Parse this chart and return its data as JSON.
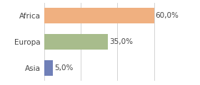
{
  "categories": [
    "Africa",
    "Europa",
    "Asia"
  ],
  "values": [
    60.0,
    35.0,
    5.0
  ],
  "bar_colors": [
    "#f0b080",
    "#a8bc8c",
    "#7080b8"
  ],
  "value_labels": [
    "60,0%",
    "35,0%",
    "5,0%"
  ],
  "xlim": [
    0,
    72
  ],
  "background_color": "#ffffff",
  "label_fontsize": 7.5,
  "bar_height": 0.6
}
